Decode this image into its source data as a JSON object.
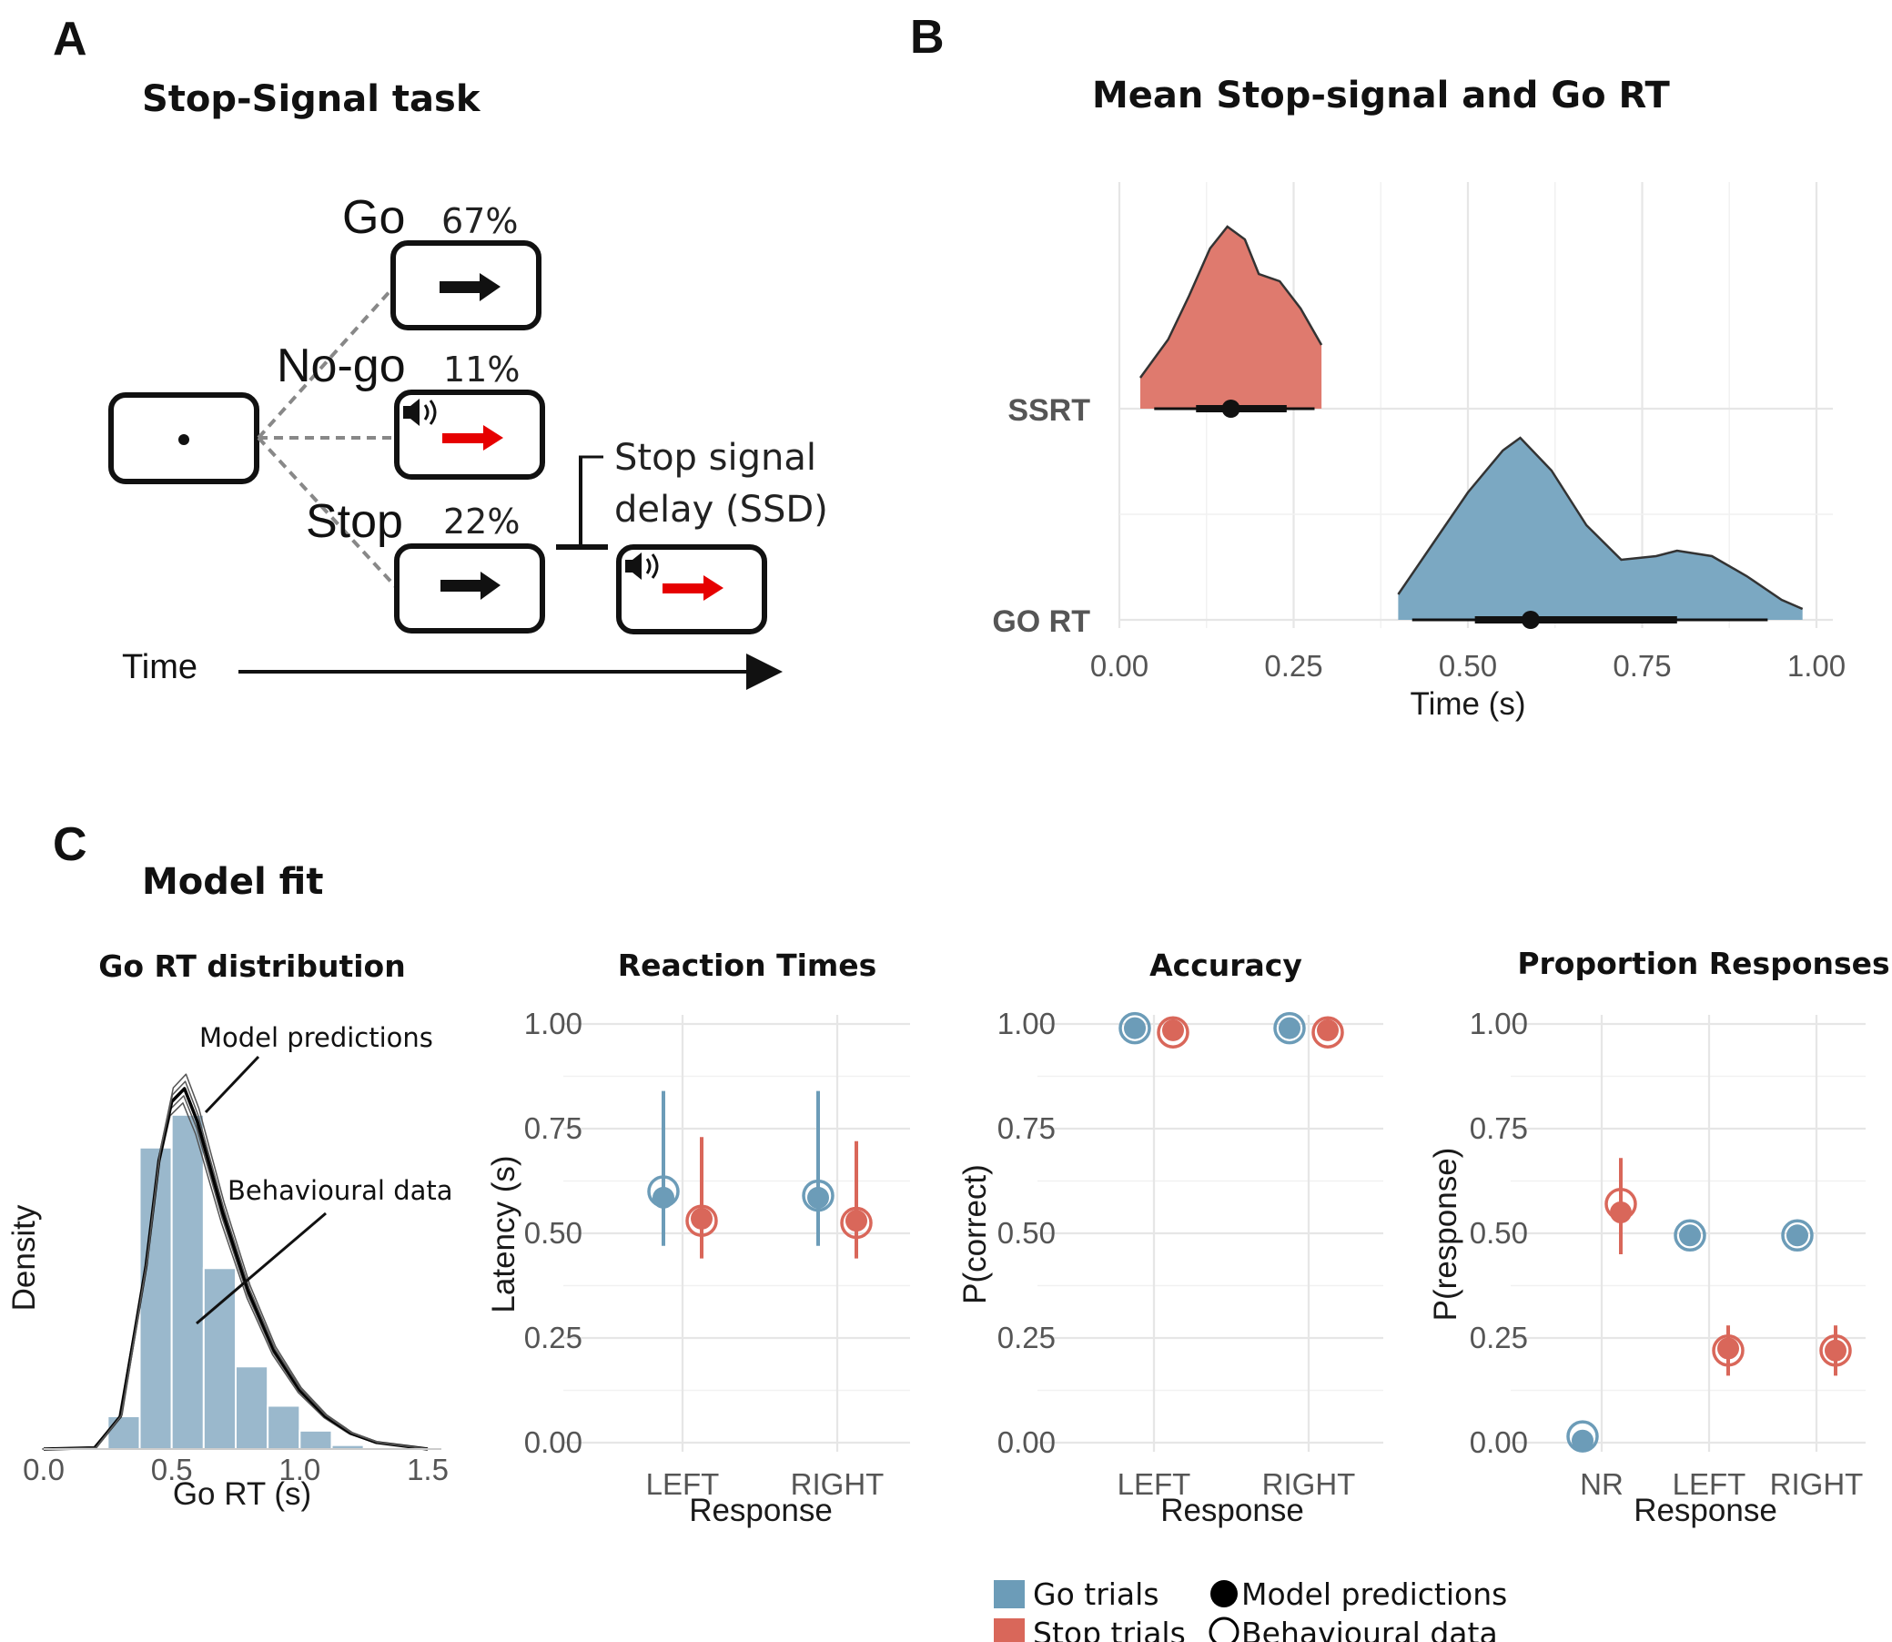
{
  "colors": {
    "go": "#6c9cb8",
    "stop": "#d9675a",
    "go_fill": "#7ba8c2",
    "stop_fill": "#df7a6e",
    "hist": "#9ab8cc"
  },
  "panelA": {
    "letter": "A",
    "title": "Stop-Signal task",
    "go_label": "Go",
    "go_pct": "67%",
    "nogo_label": "No-go",
    "nogo_pct": "11%",
    "stop_label": "Stop",
    "stop_pct": "22%",
    "ssd_line1": "Stop signal",
    "ssd_line2": "delay (SSD)",
    "time_label": "Time"
  },
  "panelB": {
    "letter": "B",
    "title": "Mean Stop-signal and Go RT",
    "xlabel": "Time (s)",
    "xticks": [
      "0.00",
      "0.25",
      "0.50",
      "0.75",
      "1.00"
    ],
    "categories": [
      "SSRT",
      "GO RT"
    ]
  },
  "panelC": {
    "letter": "C",
    "title": "Model fit",
    "gort": {
      "title": "Go RT distribution",
      "xlabel": "Go RT (s)",
      "ylabel": "Density",
      "xticks": [
        "0.0",
        "0.5",
        "1.0",
        "1.5"
      ],
      "annot_model": "Model predictions",
      "annot_behav": "Behavioural data"
    },
    "rt": {
      "title": "Reaction Times",
      "ylabel": "Latency (s)",
      "xlabel": "Response",
      "xticks": [
        "LEFT",
        "RIGHT"
      ],
      "yticks": [
        "0.00",
        "0.25",
        "0.50",
        "0.75",
        "1.00"
      ]
    },
    "acc": {
      "title": "Accuracy",
      "ylabel": "P(correct)",
      "xlabel": "Response",
      "xticks": [
        "LEFT",
        "RIGHT"
      ],
      "yticks": [
        "0.00",
        "0.25",
        "0.50",
        "0.75",
        "1.00"
      ]
    },
    "prop": {
      "title": "Proportion Responses",
      "ylabel": "P(response)",
      "xlabel": "Response",
      "xticks": [
        "NR",
        "LEFT",
        "RIGHT"
      ],
      "yticks": [
        "0.00",
        "0.25",
        "0.50",
        "0.75",
        "1.00"
      ]
    },
    "legend": {
      "go": "Go trials",
      "stop": "Stop trials",
      "model": "Model predictions",
      "behav": "Behavioural data"
    }
  },
  "chart_data": [
    {
      "type": "area",
      "panel": "B",
      "title": "Mean Stop-signal and Go RT",
      "xlabel": "Time (s)",
      "xlim": [
        0,
        1.0
      ],
      "categories": [
        "SSRT",
        "GO RT"
      ],
      "series": [
        {
          "name": "SSRT",
          "color": "stop",
          "range": [
            0.03,
            0.29
          ],
          "density": [
            [
              0.03,
              0.17
            ],
            [
              0.07,
              0.38
            ],
            [
              0.1,
              0.62
            ],
            [
              0.13,
              0.88
            ],
            [
              0.155,
              1.0
            ],
            [
              0.18,
              0.93
            ],
            [
              0.2,
              0.74
            ],
            [
              0.23,
              0.7
            ],
            [
              0.26,
              0.55
            ],
            [
              0.29,
              0.35
            ]
          ],
          "point": 0.16,
          "interval_66": [
            0.11,
            0.24
          ],
          "interval_95": [
            0.05,
            0.28
          ]
        },
        {
          "name": "GO RT",
          "color": "go",
          "range": [
            0.4,
            0.98
          ],
          "density": [
            [
              0.4,
              0.14
            ],
            [
              0.45,
              0.42
            ],
            [
              0.5,
              0.7
            ],
            [
              0.55,
              0.93
            ],
            [
              0.575,
              1.0
            ],
            [
              0.62,
              0.82
            ],
            [
              0.67,
              0.52
            ],
            [
              0.72,
              0.33
            ],
            [
              0.77,
              0.35
            ],
            [
              0.8,
              0.38
            ],
            [
              0.85,
              0.35
            ],
            [
              0.9,
              0.24
            ],
            [
              0.95,
              0.11
            ],
            [
              0.98,
              0.06
            ]
          ],
          "point": 0.59,
          "interval_66": [
            0.51,
            0.8
          ],
          "interval_95": [
            0.42,
            0.93
          ]
        }
      ]
    },
    {
      "type": "bar",
      "panel": "C",
      "title": "Go RT distribution",
      "xlabel": "Go RT (s)",
      "ylabel": "Density",
      "xlim": [
        0,
        1.5
      ],
      "bins": [
        0.125,
        0.375,
        0.625,
        0.875,
        1.125,
        1.375
      ],
      "bin_width": 0.25,
      "histogram": {
        "bin_edges": [
          0.25,
          0.375,
          0.5,
          0.625,
          0.75,
          0.875,
          1.0,
          1.125,
          1.25
        ],
        "density": [
          0.25,
          2.3,
          2.55,
          1.38,
          0.63,
          0.33,
          0.14,
          0.03
        ]
      },
      "model_curve": [
        [
          0.0,
          0.0
        ],
        [
          0.2,
          0.01
        ],
        [
          0.3,
          0.25
        ],
        [
          0.4,
          1.4
        ],
        [
          0.45,
          2.2
        ],
        [
          0.5,
          2.65
        ],
        [
          0.55,
          2.75
        ],
        [
          0.6,
          2.5
        ],
        [
          0.7,
          1.8
        ],
        [
          0.8,
          1.2
        ],
        [
          0.9,
          0.75
        ],
        [
          1.0,
          0.45
        ],
        [
          1.1,
          0.25
        ],
        [
          1.2,
          0.12
        ],
        [
          1.3,
          0.05
        ],
        [
          1.5,
          0.0
        ]
      ],
      "ylim": [
        0,
        3.0
      ]
    },
    {
      "type": "scatter",
      "panel": "C",
      "title": "Reaction Times",
      "xlabel": "Response",
      "ylabel": "Latency (s)",
      "categories": [
        "LEFT",
        "RIGHT"
      ],
      "ylim": [
        0,
        1.0
      ],
      "series": [
        {
          "name": "Go trials",
          "color": "go",
          "model": [
            0.585,
            0.585
          ],
          "behav": [
            0.6,
            0.59
          ],
          "ci": [
            [
              0.47,
              0.84
            ],
            [
              0.47,
              0.84
            ]
          ]
        },
        {
          "name": "Stop trials",
          "color": "stop",
          "model": [
            0.535,
            0.53
          ],
          "behav": [
            0.53,
            0.525
          ],
          "ci": [
            [
              0.44,
              0.73
            ],
            [
              0.44,
              0.72
            ]
          ]
        }
      ]
    },
    {
      "type": "scatter",
      "panel": "C",
      "title": "Accuracy",
      "xlabel": "Response",
      "ylabel": "P(correct)",
      "categories": [
        "LEFT",
        "RIGHT"
      ],
      "ylim": [
        0,
        1.0
      ],
      "series": [
        {
          "name": "Go trials",
          "color": "go",
          "model": [
            0.99,
            0.99
          ],
          "behav": [
            0.99,
            0.99
          ],
          "ci": [
            [
              0.98,
              1.0
            ],
            [
              0.98,
              1.0
            ]
          ]
        },
        {
          "name": "Stop trials",
          "color": "stop",
          "model": [
            0.985,
            0.985
          ],
          "behav": [
            0.98,
            0.98
          ],
          "ci": [
            [
              0.97,
              1.0
            ],
            [
              0.97,
              1.0
            ]
          ]
        }
      ]
    },
    {
      "type": "scatter",
      "panel": "C",
      "title": "Proportion Responses",
      "xlabel": "Response",
      "ylabel": "P(response)",
      "categories": [
        "NR",
        "LEFT",
        "RIGHT"
      ],
      "ylim": [
        0,
        1.0
      ],
      "series": [
        {
          "name": "Go trials",
          "color": "go",
          "model": [
            0.005,
            0.495,
            0.495
          ],
          "behav": [
            0.015,
            0.495,
            0.495
          ],
          "ci": [
            [
              0.0,
              0.02
            ],
            [
              0.48,
              0.51
            ],
            [
              0.48,
              0.51
            ]
          ]
        },
        {
          "name": "Stop trials",
          "color": "stop",
          "model": [
            0.55,
            0.225,
            0.22
          ],
          "behav": [
            0.57,
            0.22,
            0.22
          ],
          "ci": [
            [
              0.45,
              0.68
            ],
            [
              0.16,
              0.28
            ],
            [
              0.16,
              0.28
            ]
          ]
        }
      ]
    }
  ]
}
